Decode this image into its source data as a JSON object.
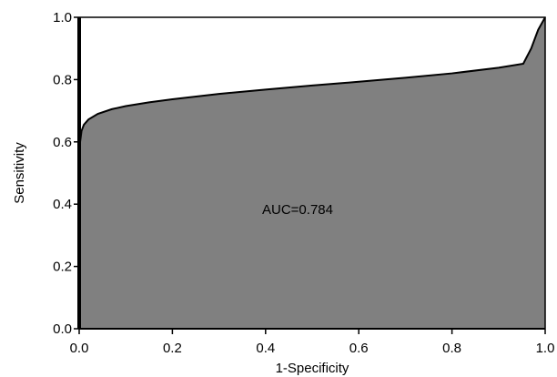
{
  "chart_data": {
    "type": "area",
    "title": "",
    "xlabel": "1-Specificity",
    "ylabel": "Sensitivity",
    "xlim": [
      0,
      1
    ],
    "ylim": [
      0,
      1
    ],
    "xticks": [
      "0.0",
      "0.2",
      "0.4",
      "0.6",
      "0.8",
      "1.0"
    ],
    "yticks": [
      "0.0",
      "0.2",
      "0.4",
      "0.6",
      "0.8",
      "1.0"
    ],
    "grid": false,
    "legend": "none",
    "annotation": "AUC=0.784",
    "colors": {
      "fill": "#808080",
      "line": "#000000",
      "background": "#ffffff"
    },
    "series": [
      {
        "x": [
          0,
          0.002,
          0.005,
          0.01,
          0.02,
          0.04,
          0.07,
          0.1,
          0.15,
          0.2,
          0.3,
          0.4,
          0.5,
          0.6,
          0.7,
          0.8,
          0.9,
          0.953,
          0.97,
          0.985,
          1.0
        ],
        "y": [
          0,
          0.6,
          0.635,
          0.655,
          0.672,
          0.69,
          0.705,
          0.715,
          0.727,
          0.737,
          0.754,
          0.768,
          0.781,
          0.793,
          0.806,
          0.82,
          0.838,
          0.851,
          0.9,
          0.96,
          1.0
        ]
      }
    ]
  }
}
